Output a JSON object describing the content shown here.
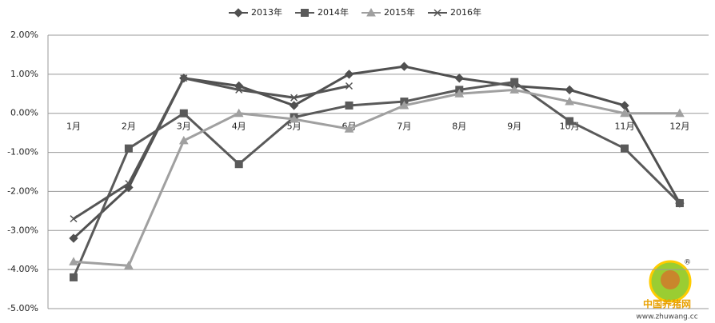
{
  "chart_data": {
    "type": "line",
    "categories": [
      "1月",
      "2月",
      "3月",
      "4月",
      "5月",
      "6月",
      "7月",
      "8月",
      "9月",
      "10月",
      "11月",
      "12月"
    ],
    "series": [
      {
        "name": "2013年",
        "color": "#505050",
        "marker": "diamond",
        "values": [
          -3.2,
          -1.9,
          0.9,
          0.7,
          0.2,
          1.0,
          1.2,
          0.9,
          0.7,
          0.6,
          0.2,
          -2.3
        ]
      },
      {
        "name": "2014年",
        "color": "#5a5a5a",
        "marker": "square",
        "values": [
          -4.2,
          -0.9,
          0.0,
          -1.3,
          -0.1,
          0.2,
          0.3,
          0.6,
          0.8,
          -0.2,
          -0.9,
          -2.3
        ]
      },
      {
        "name": "2015年",
        "color": "#a0a0a0",
        "marker": "triangle",
        "values": [
          -3.8,
          -3.9,
          -0.7,
          0.0,
          -0.15,
          -0.4,
          0.2,
          0.5,
          0.6,
          0.3,
          0.0,
          0.0
        ]
      },
      {
        "name": "2016年",
        "color": "#555555",
        "marker": "x",
        "values": [
          -2.7,
          -1.8,
          0.9,
          0.6,
          0.4,
          0.7,
          null,
          null,
          null,
          null,
          null,
          null
        ]
      }
    ],
    "ylim": [
      -5,
      2
    ],
    "yticks": [
      {
        "value": -5,
        "label": "-5.00%"
      },
      {
        "value": -4,
        "label": "-4.00%"
      },
      {
        "value": -3,
        "label": "-3.00%"
      },
      {
        "value": -2,
        "label": "-2.00%"
      },
      {
        "value": -1,
        "label": "-1.00%"
      },
      {
        "value": 0,
        "label": "0.00%"
      },
      {
        "value": 1,
        "label": "1.00%"
      },
      {
        "value": 2,
        "label": "2.00%"
      }
    ],
    "grid": true,
    "legend": "top",
    "watermark": {
      "name": "中国养猪网",
      "url": "www.zhuwang.cc"
    }
  }
}
